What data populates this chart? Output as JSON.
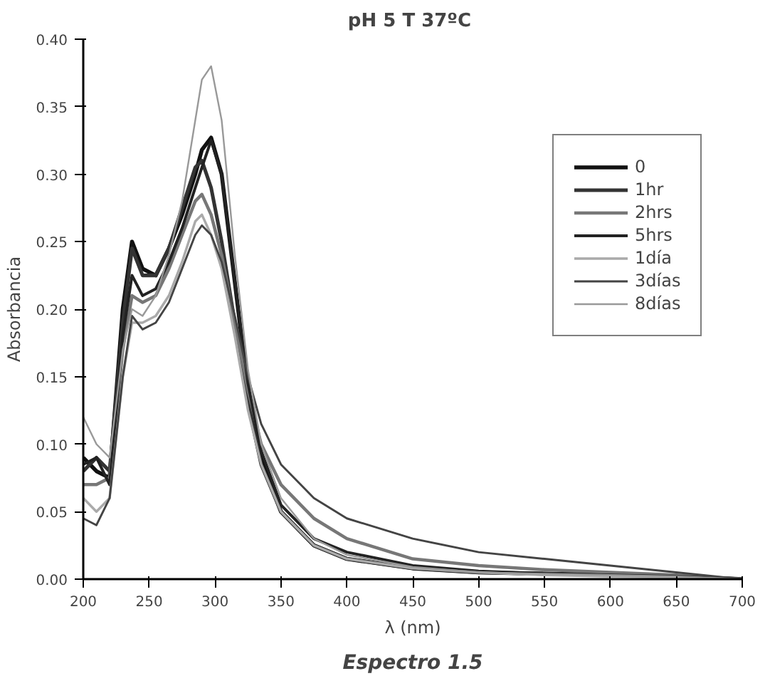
{
  "chart_data": {
    "type": "line",
    "title": "pH 5  T 37ºC",
    "xlabel": "λ (nm)",
    "ylabel": "Absorbancia",
    "annotations": [
      "Espectro 1.5"
    ],
    "x": [
      200,
      210,
      220,
      230,
      237,
      245,
      255,
      265,
      275,
      285,
      290,
      297,
      305,
      315,
      325,
      335,
      350,
      375,
      400,
      450,
      500,
      550,
      600,
      650,
      700
    ],
    "xlim": [
      200,
      700
    ],
    "xticks": [
      200,
      250,
      300,
      350,
      400,
      450,
      500,
      550,
      600,
      650,
      700
    ],
    "ylim": [
      0,
      0.4
    ],
    "yticks": [
      {
        "value": 0,
        "label": "0.00"
      },
      {
        "value": 0.05,
        "label": "0.05"
      },
      {
        "value": 0.1,
        "label": "0.10"
      },
      {
        "value": 0.15,
        "label": "0.15"
      },
      {
        "value": 0.2,
        "label": "0.20"
      },
      {
        "value": 0.25,
        "label": "0.25"
      },
      {
        "value": 0.3,
        "label": "0.30"
      },
      {
        "value": 0.35,
        "label": "0.35"
      },
      {
        "value": 0.4,
        "label": "0.40"
      }
    ],
    "grid": false,
    "legend": "right",
    "line_style": "solid",
    "series": [
      {
        "name": "0",
        "color": "#111111",
        "values": [
          0.09,
          0.08,
          0.075,
          0.2,
          0.25,
          0.23,
          0.225,
          0.245,
          0.27,
          0.3,
          0.318,
          0.327,
          0.3,
          0.22,
          0.14,
          0.09,
          0.05,
          0.025,
          0.015,
          0.008,
          0.005,
          0.004,
          0.003,
          0.002,
          0.0
        ]
      },
      {
        "name": "1hr",
        "color": "#333333",
        "values": [
          0.08,
          0.09,
          0.08,
          0.19,
          0.245,
          0.225,
          0.225,
          0.245,
          0.275,
          0.305,
          0.31,
          0.29,
          0.25,
          0.19,
          0.13,
          0.085,
          0.05,
          0.025,
          0.015,
          0.008,
          0.005,
          0.004,
          0.003,
          0.002,
          0.0
        ]
      },
      {
        "name": "2hrs",
        "color": "#777777",
        "values": [
          0.07,
          0.07,
          0.075,
          0.17,
          0.21,
          0.205,
          0.21,
          0.23,
          0.255,
          0.28,
          0.285,
          0.27,
          0.24,
          0.19,
          0.14,
          0.1,
          0.07,
          0.045,
          0.03,
          0.015,
          0.01,
          0.007,
          0.005,
          0.003,
          0.0
        ]
      },
      {
        "name": "5hrs",
        "color": "#222222",
        "values": [
          0.085,
          0.09,
          0.07,
          0.18,
          0.225,
          0.21,
          0.215,
          0.235,
          0.26,
          0.29,
          0.305,
          0.325,
          0.3,
          0.22,
          0.145,
          0.095,
          0.055,
          0.03,
          0.02,
          0.01,
          0.006,
          0.004,
          0.003,
          0.002,
          0.0
        ]
      },
      {
        "name": "1día",
        "color": "#aaaaaa",
        "values": [
          0.06,
          0.05,
          0.06,
          0.15,
          0.19,
          0.19,
          0.195,
          0.21,
          0.235,
          0.265,
          0.27,
          0.255,
          0.23,
          0.18,
          0.125,
          0.085,
          0.05,
          0.025,
          0.015,
          0.008,
          0.005,
          0.003,
          0.002,
          0.001,
          0.0
        ]
      },
      {
        "name": "3días",
        "color": "#444444",
        "values": [
          0.045,
          0.04,
          0.06,
          0.15,
          0.195,
          0.185,
          0.19,
          0.205,
          0.23,
          0.255,
          0.262,
          0.255,
          0.235,
          0.195,
          0.15,
          0.115,
          0.085,
          0.06,
          0.045,
          0.03,
          0.02,
          0.015,
          0.01,
          0.005,
          0.0
        ]
      },
      {
        "name": "8días",
        "color": "#999999",
        "values": [
          0.12,
          0.1,
          0.09,
          0.17,
          0.2,
          0.195,
          0.21,
          0.24,
          0.28,
          0.34,
          0.37,
          0.38,
          0.34,
          0.24,
          0.155,
          0.1,
          0.06,
          0.03,
          0.018,
          0.009,
          0.005,
          0.004,
          0.003,
          0.002,
          0.0
        ]
      }
    ]
  }
}
